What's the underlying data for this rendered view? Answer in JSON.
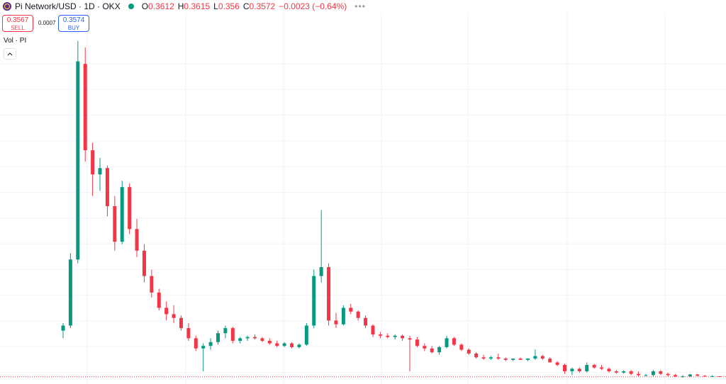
{
  "chart_data": {
    "type": "candlestick",
    "title": "Pi Network/USD · 1D · OKX",
    "legend": [
      {
        "label": "O",
        "value": 0.3612
      },
      {
        "label": "H",
        "value": 0.3615
      },
      {
        "label": "L",
        "value": 0.356
      },
      {
        "label": "C",
        "value": 0.3572
      }
    ],
    "change": "−0.0023 (−0.64%)",
    "sell": {
      "price": 0.3567,
      "label": "SELL"
    },
    "spread": 0.0007,
    "buy": {
      "price": 0.3574,
      "label": "BUY"
    },
    "volume_label": "Vol · PI",
    "up_color": "#089981",
    "down_color": "#f23645",
    "ylim": [
      0.3,
      3.1
    ],
    "open": [
      0.72,
      0.76,
      1.28,
      2.82,
      2.14,
      1.95,
      2.0,
      1.7,
      1.42,
      1.85,
      1.52,
      1.35,
      1.15,
      1.02,
      0.9,
      0.85,
      0.82,
      0.74,
      0.66,
      0.58,
      0.6,
      0.63,
      0.7,
      0.74,
      0.64,
      0.66,
      0.67,
      0.66,
      0.64,
      0.62,
      0.6,
      0.62,
      0.59,
      0.61,
      0.76,
      1.15,
      1.22,
      0.8,
      0.77,
      0.9,
      0.87,
      0.82,
      0.76,
      0.69,
      0.68,
      0.67,
      0.68,
      0.66,
      0.65,
      0.6,
      0.58,
      0.55,
      0.59,
      0.66,
      0.61,
      0.57,
      0.54,
      0.51,
      0.5,
      0.51,
      0.5,
      0.49,
      0.5,
      0.49,
      0.5,
      0.52,
      0.5,
      0.47,
      0.45,
      0.4,
      0.42,
      0.4,
      0.45,
      0.43,
      0.42,
      0.4,
      0.39,
      0.4,
      0.38,
      0.37,
      0.37,
      0.4,
      0.38,
      0.37,
      0.36,
      0.36,
      0.375,
      0.365,
      0.36,
      0.3612
    ],
    "high": [
      0.78,
      1.33,
      3.0,
      2.95,
      2.2,
      2.08,
      2.02,
      1.78,
      1.9,
      1.88,
      1.6,
      1.4,
      1.2,
      1.05,
      0.95,
      0.92,
      0.84,
      0.78,
      0.68,
      0.62,
      0.66,
      0.72,
      0.76,
      0.75,
      0.67,
      0.68,
      0.69,
      0.67,
      0.66,
      0.64,
      0.63,
      0.63,
      0.62,
      0.78,
      1.2,
      1.67,
      1.25,
      0.86,
      0.92,
      0.93,
      0.88,
      0.84,
      0.77,
      0.71,
      0.7,
      0.69,
      0.69,
      0.68,
      0.67,
      0.62,
      0.6,
      0.6,
      0.68,
      0.67,
      0.62,
      0.58,
      0.55,
      0.53,
      0.52,
      0.54,
      0.51,
      0.5,
      0.51,
      0.5,
      0.57,
      0.53,
      0.51,
      0.48,
      0.46,
      0.43,
      0.43,
      0.47,
      0.46,
      0.45,
      0.43,
      0.41,
      0.41,
      0.41,
      0.4,
      0.38,
      0.41,
      0.41,
      0.39,
      0.38,
      0.37,
      0.38,
      0.38,
      0.37,
      0.37,
      0.3615
    ],
    "low": [
      0.66,
      0.74,
      1.25,
      2.05,
      1.78,
      1.82,
      1.62,
      1.35,
      1.4,
      1.48,
      1.3,
      1.1,
      0.98,
      0.88,
      0.8,
      0.78,
      0.72,
      0.64,
      0.56,
      0.4,
      0.57,
      0.61,
      0.66,
      0.62,
      0.62,
      0.64,
      0.65,
      0.63,
      0.61,
      0.59,
      0.59,
      0.58,
      0.58,
      0.6,
      0.74,
      1.1,
      0.76,
      0.74,
      0.76,
      0.85,
      0.8,
      0.74,
      0.67,
      0.66,
      0.66,
      0.65,
      0.64,
      0.4,
      0.59,
      0.56,
      0.54,
      0.53,
      0.58,
      0.6,
      0.56,
      0.53,
      0.5,
      0.49,
      0.49,
      0.49,
      0.48,
      0.48,
      0.49,
      0.48,
      0.49,
      0.49,
      0.47,
      0.44,
      0.38,
      0.37,
      0.39,
      0.39,
      0.42,
      0.41,
      0.39,
      0.38,
      0.38,
      0.37,
      0.36,
      0.36,
      0.36,
      0.37,
      0.36,
      0.355,
      0.35,
      0.355,
      0.36,
      0.355,
      0.355,
      0.356
    ],
    "close": [
      0.76,
      1.28,
      2.84,
      2.14,
      1.95,
      2.0,
      1.7,
      1.42,
      1.85,
      1.52,
      1.35,
      1.15,
      1.02,
      0.9,
      0.85,
      0.82,
      0.74,
      0.66,
      0.58,
      0.6,
      0.63,
      0.7,
      0.74,
      0.64,
      0.66,
      0.67,
      0.66,
      0.64,
      0.62,
      0.6,
      0.62,
      0.59,
      0.61,
      0.76,
      1.15,
      1.22,
      0.8,
      0.77,
      0.9,
      0.87,
      0.82,
      0.76,
      0.69,
      0.68,
      0.67,
      0.68,
      0.66,
      0.65,
      0.6,
      0.58,
      0.55,
      0.59,
      0.66,
      0.61,
      0.57,
      0.54,
      0.51,
      0.5,
      0.51,
      0.5,
      0.49,
      0.5,
      0.49,
      0.5,
      0.52,
      0.5,
      0.47,
      0.45,
      0.4,
      0.42,
      0.4,
      0.45,
      0.43,
      0.42,
      0.4,
      0.39,
      0.4,
      0.38,
      0.37,
      0.37,
      0.4,
      0.38,
      0.37,
      0.36,
      0.36,
      0.375,
      0.365,
      0.36,
      0.3612,
      0.3572
    ]
  }
}
